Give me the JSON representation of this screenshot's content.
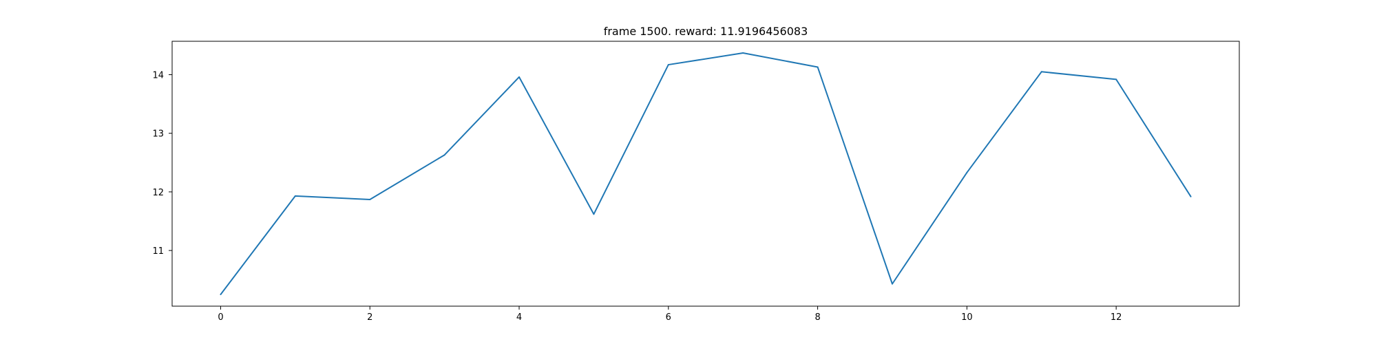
{
  "chart_data": {
    "type": "line",
    "title": "frame 1500. reward: 11.9196456083",
    "xlabel": "",
    "ylabel": "",
    "x": [
      0,
      1,
      2,
      3,
      4,
      5,
      6,
      7,
      8,
      9,
      10,
      11,
      12,
      13
    ],
    "values": [
      10.25,
      11.93,
      11.87,
      12.63,
      13.96,
      11.62,
      14.17,
      14.37,
      14.13,
      10.43,
      12.33,
      14.05,
      13.92,
      11.92
    ],
    "xlim": [
      -0.65,
      13.65
    ],
    "ylim": [
      10.05,
      14.57
    ],
    "xticks": [
      0,
      2,
      4,
      6,
      8,
      10,
      12
    ],
    "yticks": [
      11,
      12,
      13,
      14
    ],
    "grid": false,
    "line_color": "#1f77b4"
  }
}
